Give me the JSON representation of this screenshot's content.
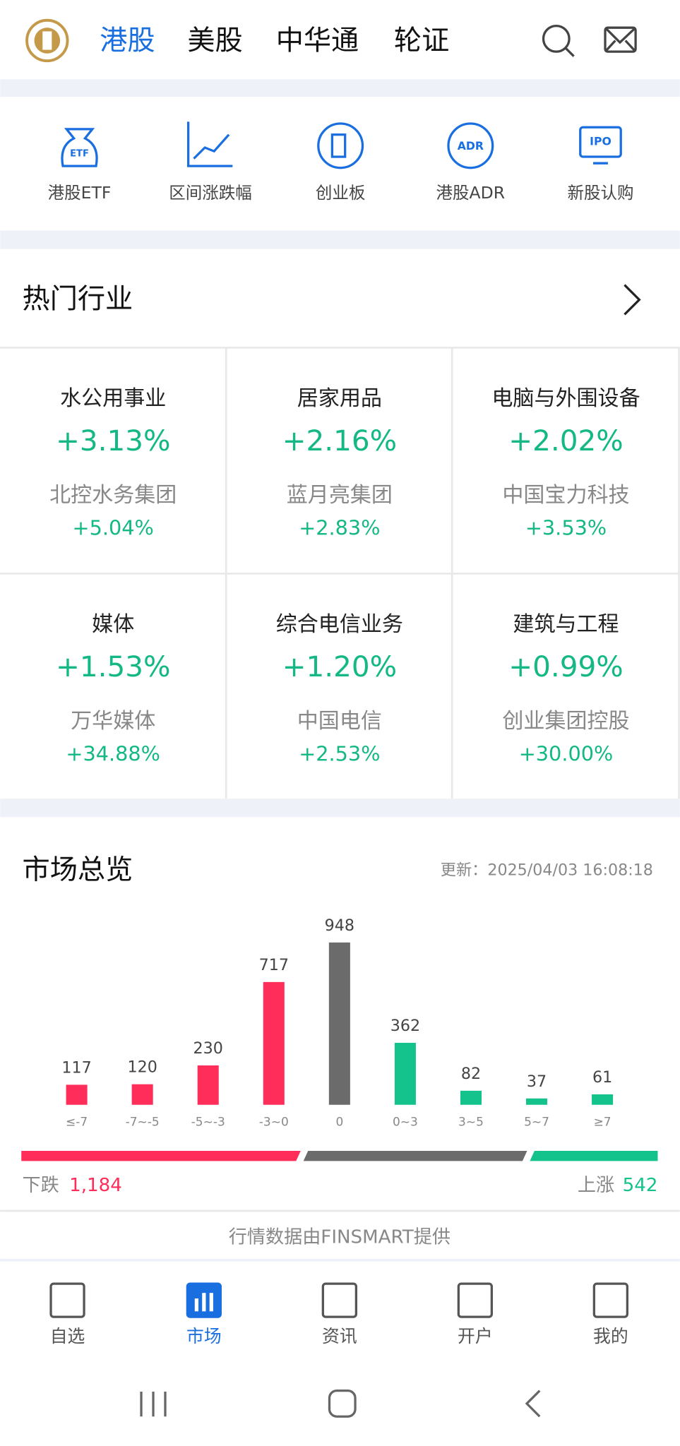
{
  "header": {
    "tabs": [
      "港股",
      "美股",
      "中华通",
      "轮证"
    ]
  },
  "shortcuts": [
    "港股ETF",
    "区间涨跌幅",
    "创业板",
    "港股ADR",
    "新股认购"
  ],
  "shortcut_icons": [
    "ETF",
    "ADR",
    "IPO"
  ],
  "hot": {
    "title": "热门行业",
    "items": [
      {
        "name": "水公用事业",
        "change": "+3.13%",
        "stock": "北控水务集团",
        "stock_change": "+5.04%"
      },
      {
        "name": "居家用品",
        "change": "+2.16%",
        "stock": "蓝月亮集团",
        "stock_change": "+2.83%"
      },
      {
        "name": "电脑与外围设备",
        "change": "+2.02%",
        "stock": "中国宝力科技",
        "stock_change": "+3.53%"
      },
      {
        "name": "媒体",
        "change": "+1.53%",
        "stock": "万华媒体",
        "stock_change": "+34.88%"
      },
      {
        "name": "综合电信业务",
        "change": "+1.20%",
        "stock": "中国电信",
        "stock_change": "+2.53%"
      },
      {
        "name": "建筑与工程",
        "change": "+0.99%",
        "stock": "创业集团控股",
        "stock_change": "+30.00%"
      }
    ]
  },
  "market": {
    "title": "市场总览",
    "update": "更新：2025/04/03 16:08:18",
    "down": {
      "label": "下跌",
      "value": 1184,
      "value_label": "1,184"
    },
    "up": {
      "label": "上涨",
      "value": 542
    },
    "source": "行情数据由FINSMART提供"
  },
  "chart_data": {
    "type": "bar",
    "categories": [
      "≤-7",
      "-7~-5",
      "-5~-3",
      "-3~0",
      "0",
      "0~3",
      "3~5",
      "5~7",
      "≥7"
    ],
    "values": [
      117,
      120,
      230,
      717,
      948,
      362,
      82,
      37,
      61
    ],
    "colors": [
      "#ff2d5a",
      "#ff2d5a",
      "#ff2d5a",
      "#ff2d5a",
      "#6b6b6b",
      "#13c38b",
      "#13c38b",
      "#13c38b",
      "#13c38b"
    ]
  },
  "nav": [
    "自选",
    "市场",
    "资讯",
    "开户",
    "我的"
  ],
  "nav_active": 1
}
